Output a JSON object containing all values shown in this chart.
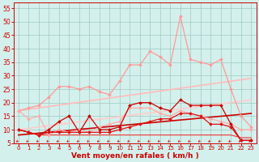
{
  "xlabel": "Vent moyen/en rafales ( km/h )",
  "xlim": [
    -0.5,
    23.5
  ],
  "ylim": [
    5,
    57
  ],
  "yticks": [
    5,
    10,
    15,
    20,
    25,
    30,
    35,
    40,
    45,
    50,
    55
  ],
  "xticks": [
    0,
    1,
    2,
    3,
    4,
    5,
    6,
    7,
    8,
    9,
    10,
    11,
    12,
    13,
    14,
    15,
    16,
    17,
    18,
    19,
    20,
    21,
    22,
    23
  ],
  "bg_color": "#d4f0ec",
  "grid_color": "#a0c8c0",
  "series": [
    {
      "name": "pink_rafales_high",
      "color": "#ff9999",
      "lw": 0.9,
      "marker": "D",
      "ms": 1.8,
      "zorder": 3,
      "y": [
        17,
        18,
        19,
        22,
        26,
        26,
        25,
        26,
        24,
        23,
        28,
        34,
        34,
        39,
        37,
        34,
        52,
        36,
        35,
        34,
        36,
        25,
        15,
        11
      ]
    },
    {
      "name": "pink_moyen_high",
      "color": "#ffaaaa",
      "lw": 0.9,
      "marker": "D",
      "ms": 1.8,
      "zorder": 3,
      "y": [
        17,
        14,
        15,
        8,
        10,
        9,
        10,
        9,
        11,
        12,
        13,
        18,
        18,
        18,
        16,
        15,
        17,
        16,
        15,
        14,
        13,
        12,
        10,
        10
      ]
    },
    {
      "name": "trend_line_upper",
      "color": "#ffbbbb",
      "lw": 1.2,
      "marker": null,
      "ms": 0,
      "zorder": 2,
      "y": [
        17.0,
        17.52,
        18.04,
        18.57,
        19.09,
        19.61,
        20.13,
        20.65,
        21.17,
        21.7,
        22.22,
        22.74,
        23.26,
        23.78,
        24.3,
        24.83,
        25.35,
        25.87,
        26.39,
        26.91,
        27.43,
        27.96,
        28.48,
        29.0
      ]
    },
    {
      "name": "trend_line_lower",
      "color": "#ffcccc",
      "lw": 1.2,
      "marker": null,
      "ms": 0,
      "zorder": 2,
      "y": [
        10.0,
        10.48,
        10.96,
        11.43,
        11.91,
        12.39,
        12.87,
        13.35,
        13.83,
        14.3,
        14.78,
        15.26,
        15.74,
        16.22,
        16.7,
        17.17,
        17.65,
        18.13,
        18.61,
        19.09,
        19.57,
        20.04,
        20.52,
        21.0
      ]
    },
    {
      "name": "dark_red_spiky",
      "color": "#cc0000",
      "lw": 0.9,
      "marker": "D",
      "ms": 1.8,
      "zorder": 4,
      "y": [
        10,
        9,
        8,
        10,
        13,
        15,
        9,
        15,
        10,
        10,
        11,
        19,
        20,
        20,
        18,
        17,
        21,
        19,
        19,
        19,
        19,
        12,
        6,
        6
      ]
    },
    {
      "name": "red_flat_low",
      "color": "#dd1111",
      "lw": 0.9,
      "marker": "D",
      "ms": 1.8,
      "zorder": 4,
      "y": [
        10,
        9,
        8,
        9,
        9,
        9,
        9,
        9,
        9,
        9,
        10,
        11,
        12,
        13,
        14,
        14,
        16,
        16,
        15,
        12,
        12,
        11,
        6,
        6
      ]
    },
    {
      "name": "dark_red_baseline",
      "color": "#ee3333",
      "lw": 0.8,
      "marker": null,
      "ms": 0,
      "zorder": 2,
      "y": [
        10,
        9,
        8,
        8,
        8,
        8,
        8,
        8,
        8,
        8,
        8,
        8,
        8,
        8,
        8,
        8,
        8,
        8,
        8,
        8,
        8,
        8,
        7,
        7
      ]
    },
    {
      "name": "dark_red_trend",
      "color": "#cc0000",
      "lw": 1.2,
      "marker": null,
      "ms": 0,
      "zorder": 2,
      "y": [
        8.0,
        8.35,
        8.7,
        9.04,
        9.39,
        9.74,
        10.09,
        10.43,
        10.78,
        11.13,
        11.48,
        11.83,
        12.17,
        12.52,
        12.87,
        13.22,
        13.57,
        13.91,
        14.26,
        14.61,
        14.96,
        15.3,
        15.65,
        16.0
      ]
    }
  ],
  "arrow_color": "#cc0000",
  "xlabel_color": "#cc0000",
  "xlabel_fontsize": 6.5,
  "xtick_fontsize": 5.0,
  "ytick_fontsize": 5.5,
  "tick_color": "#cc0000",
  "spine_color": "#cc0000"
}
